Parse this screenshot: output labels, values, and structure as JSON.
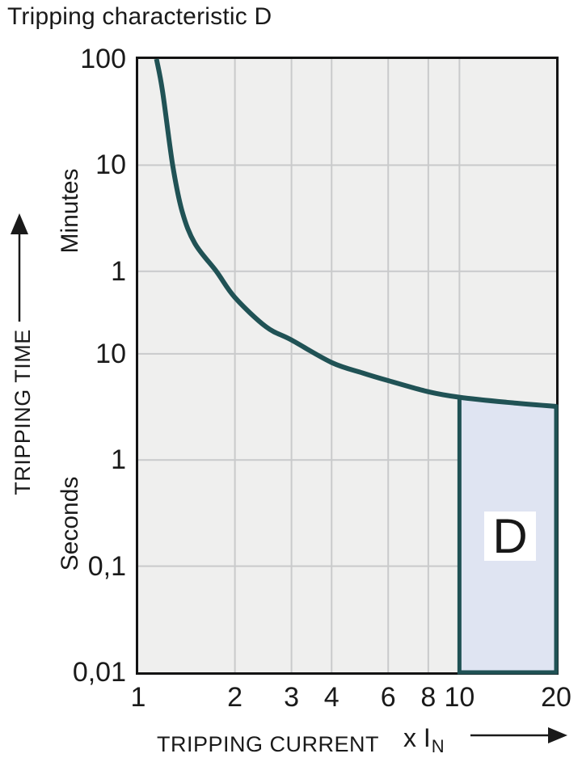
{
  "title": "Tripping characteristic D",
  "chart_data": {
    "type": "line",
    "x_scale": "log",
    "y_scale": "log",
    "x_range_multiple_of_in": [
      1,
      20
    ],
    "y_range_seconds": [
      0.01,
      6000
    ],
    "x_axis": {
      "title": "TRIPPING CURRENT",
      "unit_prefix": "x I",
      "unit_sub": "N",
      "ticks": [
        {
          "label": "1",
          "value": 1
        },
        {
          "label": "2",
          "value": 2
        },
        {
          "label": "3",
          "value": 3
        },
        {
          "label": "4",
          "value": 4
        },
        {
          "label": "6",
          "value": 6
        },
        {
          "label": "8",
          "value": 8
        },
        {
          "label": "10",
          "value": 10
        },
        {
          "label": "20",
          "value": 20
        }
      ],
      "gridlines": [
        2,
        3,
        4,
        6,
        8,
        10
      ]
    },
    "y_axis": {
      "title": "TRIPPING TIME",
      "unit_sections": [
        {
          "label": "Minutes",
          "center_seconds": 223
        },
        {
          "label": "Seconds",
          "center_seconds": 0.25
        }
      ],
      "ticks": [
        {
          "label": "100",
          "seconds": 6000
        },
        {
          "label": "10",
          "seconds": 600
        },
        {
          "label": "1",
          "seconds": 60
        },
        {
          "label": "10",
          "seconds": 10
        },
        {
          "label": "1",
          "seconds": 1
        },
        {
          "label": "0,1",
          "seconds": 0.1
        },
        {
          "label": "0,01",
          "seconds": 0.01
        }
      ],
      "gridlines_seconds": [
        600,
        60,
        10,
        1,
        0.1
      ]
    },
    "series": [
      {
        "name": "Tripping characteristic D curve",
        "points_multiple_vs_seconds": [
          [
            1.14,
            6000
          ],
          [
            1.19,
            3000
          ],
          [
            1.28,
            600
          ],
          [
            1.37,
            220
          ],
          [
            1.5,
            110
          ],
          [
            1.75,
            60
          ],
          [
            2,
            34
          ],
          [
            2.5,
            18
          ],
          [
            3,
            13.5
          ],
          [
            4,
            8.3
          ],
          [
            5,
            6.6
          ],
          [
            6,
            5.6
          ],
          [
            8,
            4.4
          ],
          [
            10,
            3.9
          ],
          [
            14,
            3.5
          ],
          [
            20,
            3.2
          ]
        ]
      }
    ],
    "region": {
      "label": "D",
      "x_from": 10,
      "x_to": 20,
      "bottom_seconds": 0.01,
      "top_points_multiple_vs_seconds": [
        [
          10,
          3.9
        ],
        [
          14,
          3.5
        ],
        [
          20,
          3.2
        ]
      ]
    },
    "colors": {
      "curve": "#205255",
      "grid": "#c9cacb",
      "plot_bg": "#efefee",
      "region_fill": "#dfe4f2",
      "plot_border": "#131313",
      "text": "#1a1a1a"
    }
  }
}
